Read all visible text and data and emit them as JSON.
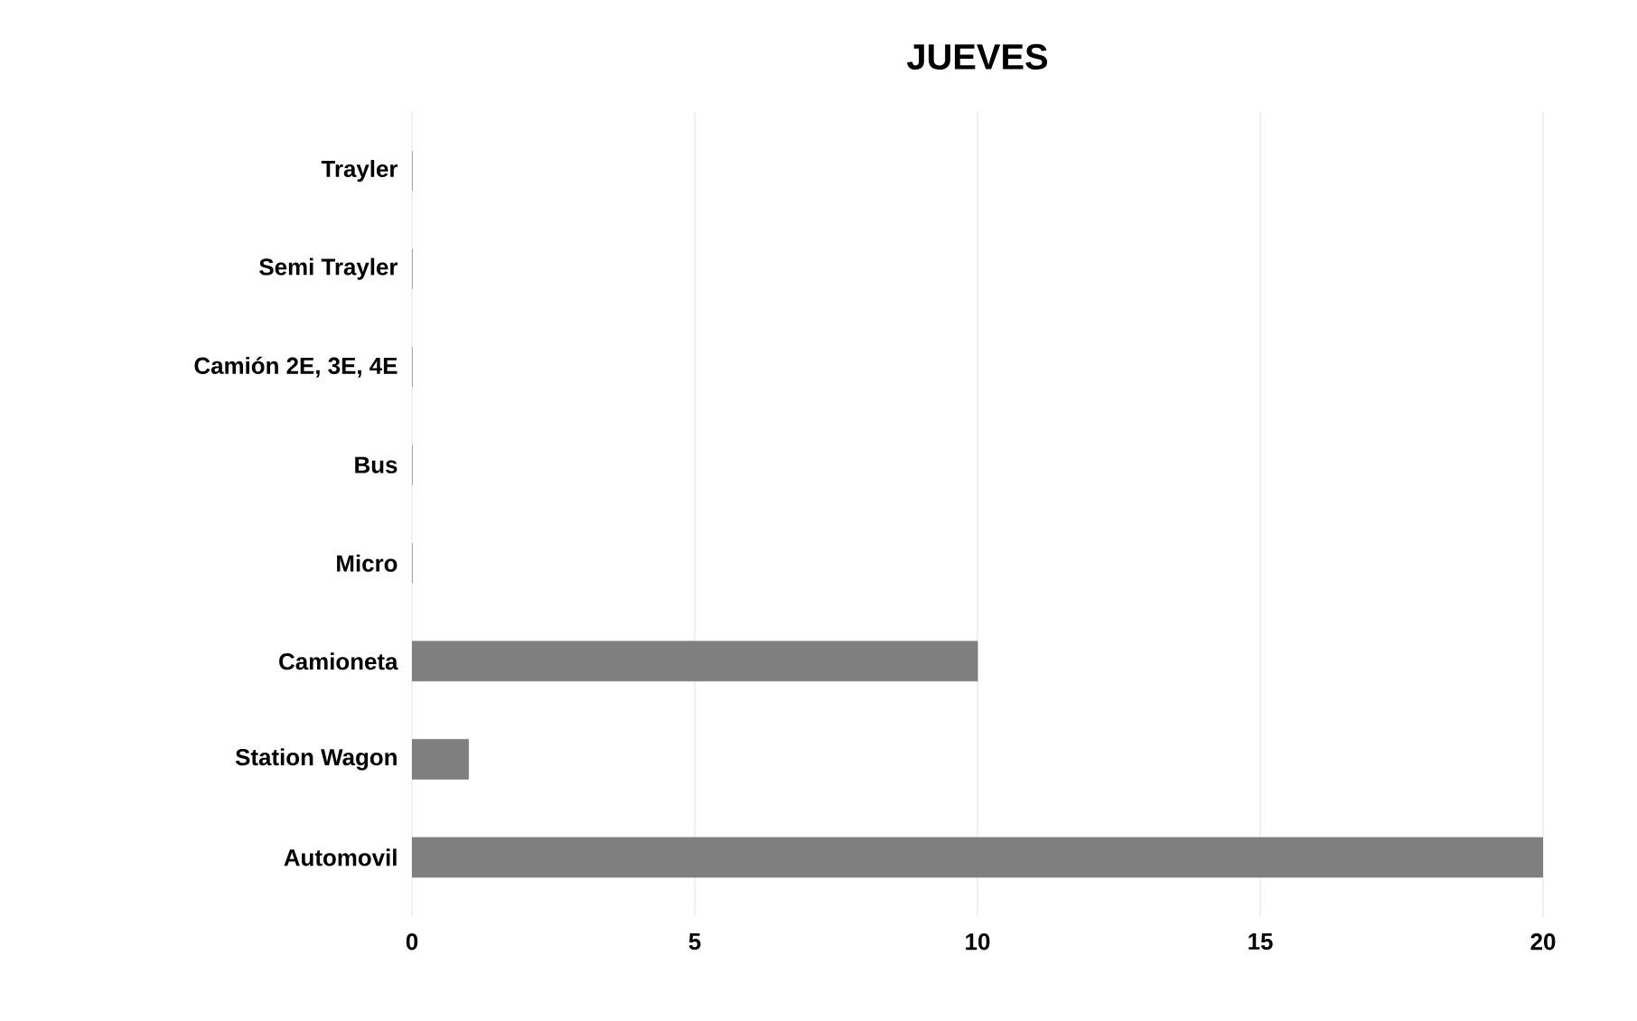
{
  "chart_data": {
    "type": "bar",
    "orientation": "horizontal",
    "title": "JUEVES",
    "categories": [
      "Trayler",
      "Semi Trayler",
      "Camión 2E, 3E, 4E",
      "Bus",
      "Micro",
      "Camioneta",
      "Station Wagon",
      "Automovil"
    ],
    "values": [
      0,
      0,
      0,
      0,
      0,
      10,
      1,
      20
    ],
    "color": "#7f7f7f",
    "xlim": [
      0,
      20
    ],
    "xticks": [
      0,
      5,
      10,
      15,
      20
    ],
    "grid": "x"
  }
}
